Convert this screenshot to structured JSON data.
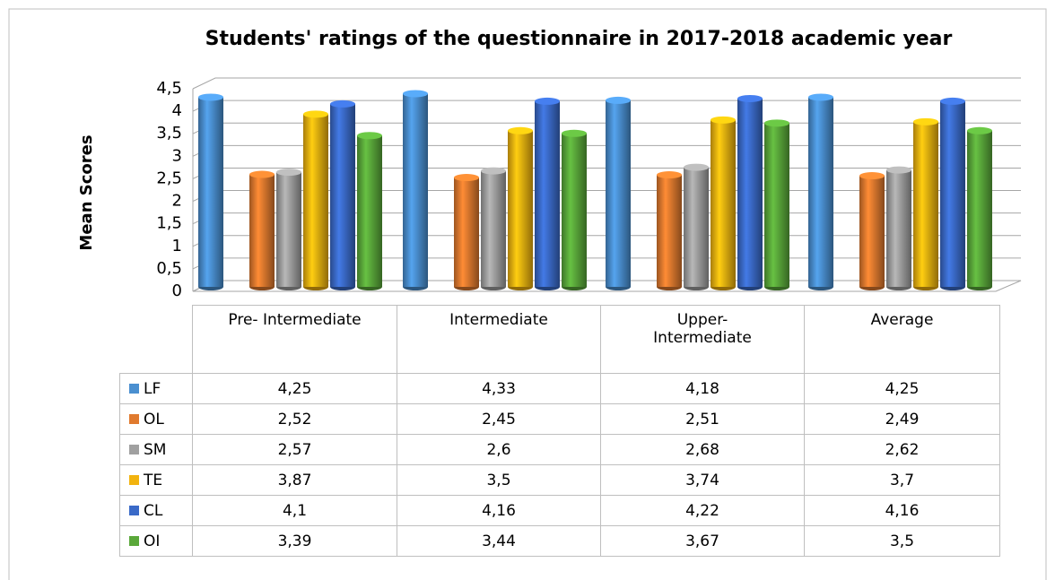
{
  "chart_data": {
    "type": "bar",
    "title": "Students' ratings of the questionnaire in 2017-2018 academic year",
    "y_label": "Mean Scores",
    "categories": [
      "Pre- Intermediate",
      "Intermediate",
      "Upper-\nIntermediate",
      "Average"
    ],
    "ylim": [
      0,
      4.5
    ],
    "yticks": [
      0,
      {
        "value": 0.5,
        "label": "0,5"
      },
      1,
      {
        "value": 1.5,
        "label": "1,5"
      },
      2,
      {
        "value": 2.5,
        "label": "2,5"
      },
      3,
      {
        "value": 3.5,
        "label": "3,5"
      },
      4,
      {
        "value": 4.5,
        "label": "4,5"
      }
    ],
    "grid": true,
    "series": [
      {
        "name": "LF",
        "color": "#4a8fd0",
        "values": [
          4.25,
          4.33,
          4.18,
          4.25
        ],
        "value_labels": [
          "4,25",
          "4,33",
          "4,18",
          "4,25"
        ]
      },
      {
        "name": "OL",
        "color": "#e07a2e",
        "values": [
          2.52,
          2.45,
          2.51,
          2.49
        ],
        "value_labels": [
          "2,52",
          "2,45",
          "2,51",
          "2,49"
        ]
      },
      {
        "name": "SM",
        "color": "#a0a0a0",
        "values": [
          2.57,
          2.6,
          2.68,
          2.62
        ],
        "value_labels": [
          "2,57",
          "2,6",
          "2,68",
          "2,62"
        ]
      },
      {
        "name": "TE",
        "color": "#f2b30f",
        "values": [
          3.87,
          3.5,
          3.74,
          3.7
        ],
        "value_labels": [
          "3,87",
          "3,5",
          "3,74",
          "3,7"
        ]
      },
      {
        "name": "CL",
        "color": "#3a6ac8",
        "values": [
          4.1,
          4.16,
          4.22,
          4.16
        ],
        "value_labels": [
          "4,1",
          "4,16",
          "4,22",
          "4,16"
        ]
      },
      {
        "name": "OI",
        "color": "#5aa83a",
        "values": [
          3.39,
          3.44,
          3.67,
          3.5
        ],
        "value_labels": [
          "3,39",
          "3,44",
          "3,67",
          "3,5"
        ]
      }
    ]
  }
}
